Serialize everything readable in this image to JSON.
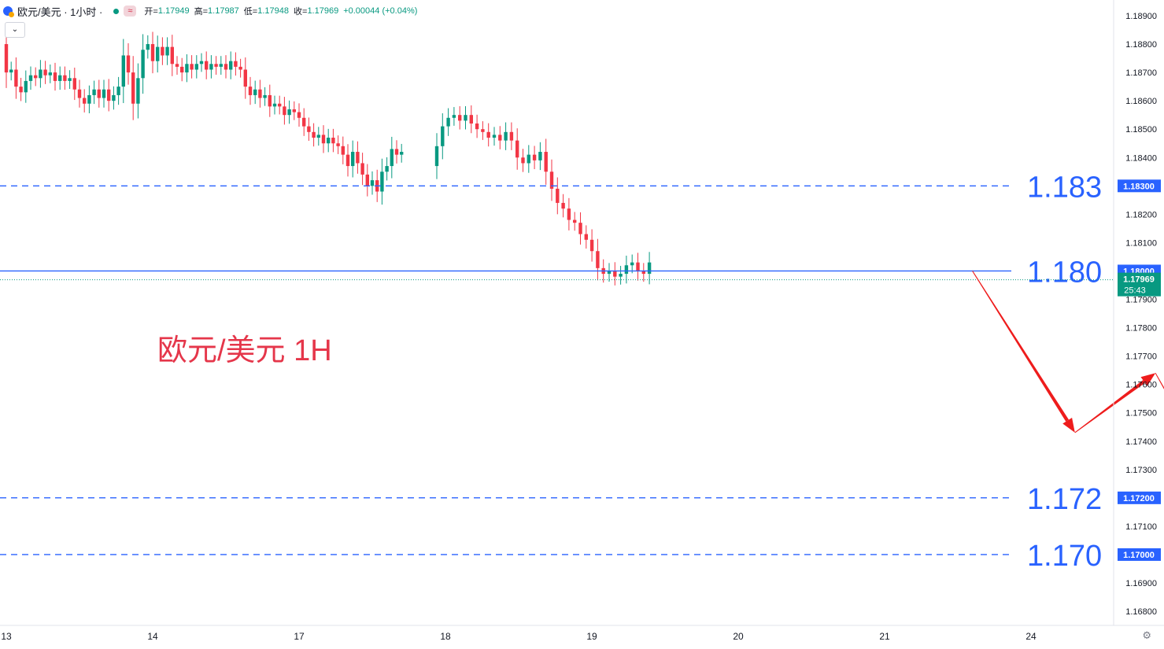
{
  "header": {
    "symbol_title": "欧元/美元 · 1小时 ·",
    "indicator_chip": "≈",
    "ohlc": [
      {
        "label": "开=",
        "value": "1.17949"
      },
      {
        "label": "高=",
        "value": "1.17987"
      },
      {
        "label": "低=",
        "value": "1.17948"
      },
      {
        "label": "收=",
        "value": "1.17969"
      }
    ],
    "change": "+0.00044 (+0.04%)",
    "dropdown_icon": "chevron-down-icon"
  },
  "colors": {
    "up": "#089981",
    "down": "#f23645",
    "level_line": "#2962ff",
    "arrow": "#ee1c1c",
    "annotation_text": "#e5364a",
    "big_label": "#2962ff"
  },
  "chart_data": {
    "type": "candlestick",
    "title": "欧元/美元 1H",
    "ylim": [
      1.1675,
      1.1895
    ],
    "y_ticks": [
      "1.18900",
      "1.18800",
      "1.18700",
      "1.18600",
      "1.18500",
      "1.18400",
      "1.18200",
      "1.18100",
      "1.17900",
      "1.17800",
      "1.17700",
      "1.17600",
      "1.17500",
      "1.17400",
      "1.17300",
      "1.17100",
      "1.16900",
      "1.16800"
    ],
    "x_labels": [
      "13",
      "14",
      "17",
      "18",
      "19",
      "20",
      "21",
      "24"
    ],
    "levels": [
      {
        "value": 1.183,
        "label": "1.183",
        "tag": "1.18300",
        "style": "dashed"
      },
      {
        "value": 1.18,
        "label": "1.180",
        "tag": "1.18000",
        "style": "solid"
      },
      {
        "value": 1.172,
        "label": "1.172",
        "tag": "1.17200",
        "style": "dashed"
      },
      {
        "value": 1.17,
        "label": "1.170",
        "tag": "1.17000",
        "style": "dashed"
      }
    ],
    "last_price": {
      "value": 1.17969,
      "tag": "1.17969",
      "countdown": "25:43"
    },
    "projection_path": [
      {
        "day": 19.6,
        "price": 1.18
      },
      {
        "day": 20.3,
        "price": 1.1743
      },
      {
        "day": 20.85,
        "price": 1.1764
      },
      {
        "day": 21.55,
        "price": 1.17
      }
    ],
    "segments": [
      {
        "start": 1.188,
        "steps": [
          -0.001,
          0.0001,
          -0.0006,
          -0.0002,
          0.0004,
          0.0002,
          -0.0001,
          0.0003,
          -0.0002,
          0.0001,
          -0.0003,
          0.0002,
          -0.0002,
          0.0001,
          -0.0004,
          -0.0003,
          -0.0002,
          0.0003,
          0.0002,
          -0.0003,
          0.0003,
          -0.0004,
          0.0002,
          0.0003,
          0.0011,
          -0.0006,
          -0.0011,
          0.0009,
          0.001,
          0.0002,
          -0.0006,
          0.0005,
          -0.0003,
          0.0003,
          -0.0006,
          -0.0001,
          -0.0002,
          0.0003,
          -0.0002,
          0.0002,
          0.0001,
          -0.0003,
          0.0002,
          -0.0001,
          0.0001,
          -0.0002,
          0.0003,
          -0.0002,
          -0.0001,
          -0.0006,
          -0.0003,
          0.0002,
          -0.0003,
          0.0001,
          -0.0004,
          0.0001,
          -0.0001,
          -0.0003,
          0.0002,
          -0.0001,
          -0.0002,
          -0.0003,
          -0.0002,
          -0.0002,
          0.0001,
          -0.0003,
          0.0002,
          -0.0002,
          -0.0001,
          -0.0003,
          -0.0004,
          0.0005,
          -0.0004,
          -0.0004,
          -0.0004,
          0.0002,
          -0.0004,
          0.0007,
          0.0002,
          0.0006,
          -0.0002,
          0.0001
        ]
      },
      {
        "start": 1.1837,
        "steps": [
          0.0007,
          0.0007,
          0.0003,
          0.0001,
          -0.0002,
          0.0002,
          -0.0003,
          -0.0002,
          -0.0001,
          -0.0002,
          0.0001,
          -0.0002,
          0.0003,
          -0.0003,
          -0.0006,
          -0.0002,
          0.0003,
          -0.0002,
          0.0003,
          -0.0007,
          -0.0006,
          -0.0005,
          -0.0002,
          -0.0004,
          -0.0001,
          -0.0004,
          -0.0002,
          -0.0004,
          -0.0006,
          -0.0002,
          0.0001,
          -0.0002,
          0.0001,
          0.0003,
          0.0001,
          -0.0003,
          -0.0001,
          0.0004
        ]
      }
    ]
  }
}
